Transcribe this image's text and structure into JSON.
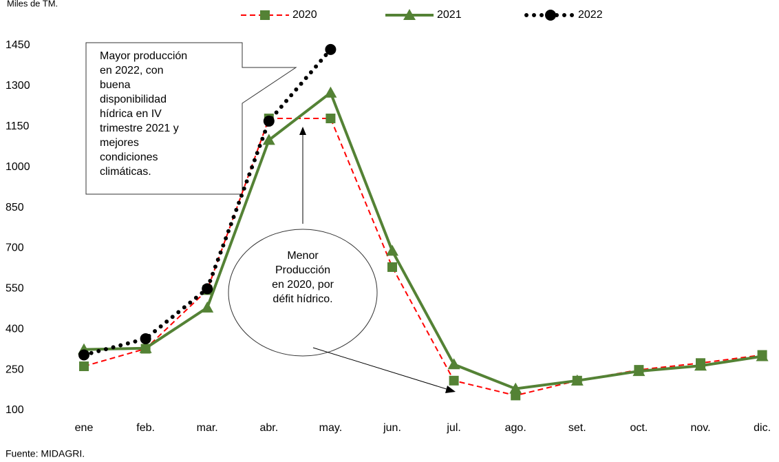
{
  "chart_data": {
    "type": "line",
    "y_label": "Miles de TM.",
    "categories": [
      "ene",
      "feb.",
      "mar.",
      "abr.",
      "may.",
      "jun.",
      "jul.",
      "ago.",
      "set.",
      "oct.",
      "nov.",
      "dic."
    ],
    "series": [
      {
        "name": "2020",
        "color": "#ff0000",
        "marker_color": "#548235",
        "marker": "square",
        "dash": "dashed",
        "values": [
          263,
          328,
          545,
          1180,
          1180,
          630,
          210,
          155,
          210,
          250,
          275,
          305
        ]
      },
      {
        "name": "2021",
        "color": "#548235",
        "marker_color": "#548235",
        "marker": "triangle",
        "dash": "solid",
        "values": [
          325,
          330,
          480,
          1100,
          1275,
          690,
          270,
          180,
          210,
          245,
          265,
          300
        ]
      },
      {
        "name": "2022",
        "color": "#000000",
        "marker_color": "#000000",
        "marker": "circle",
        "dash": "dotted",
        "values": [
          305,
          365,
          550,
          1170,
          1435,
          null,
          null,
          null,
          null,
          null,
          null,
          null
        ]
      }
    ],
    "ylim": [
      100,
      1450
    ],
    "yticks": [
      100,
      250,
      400,
      550,
      700,
      850,
      1000,
      1150,
      1300,
      1450
    ],
    "annotations": [
      {
        "lines": [
          "Mayor producción",
          "en 2022, con",
          "buena",
          "disponibilidad",
          "hídrica en IV",
          "trimestre 2021 y",
          "mejores",
          "condiciones",
          "climáticas."
        ]
      },
      {
        "lines": [
          "Menor",
          "Producción",
          "en 2020, por",
          "défit hídrico."
        ]
      }
    ],
    "source": "Fuente: MIDAGRI."
  }
}
